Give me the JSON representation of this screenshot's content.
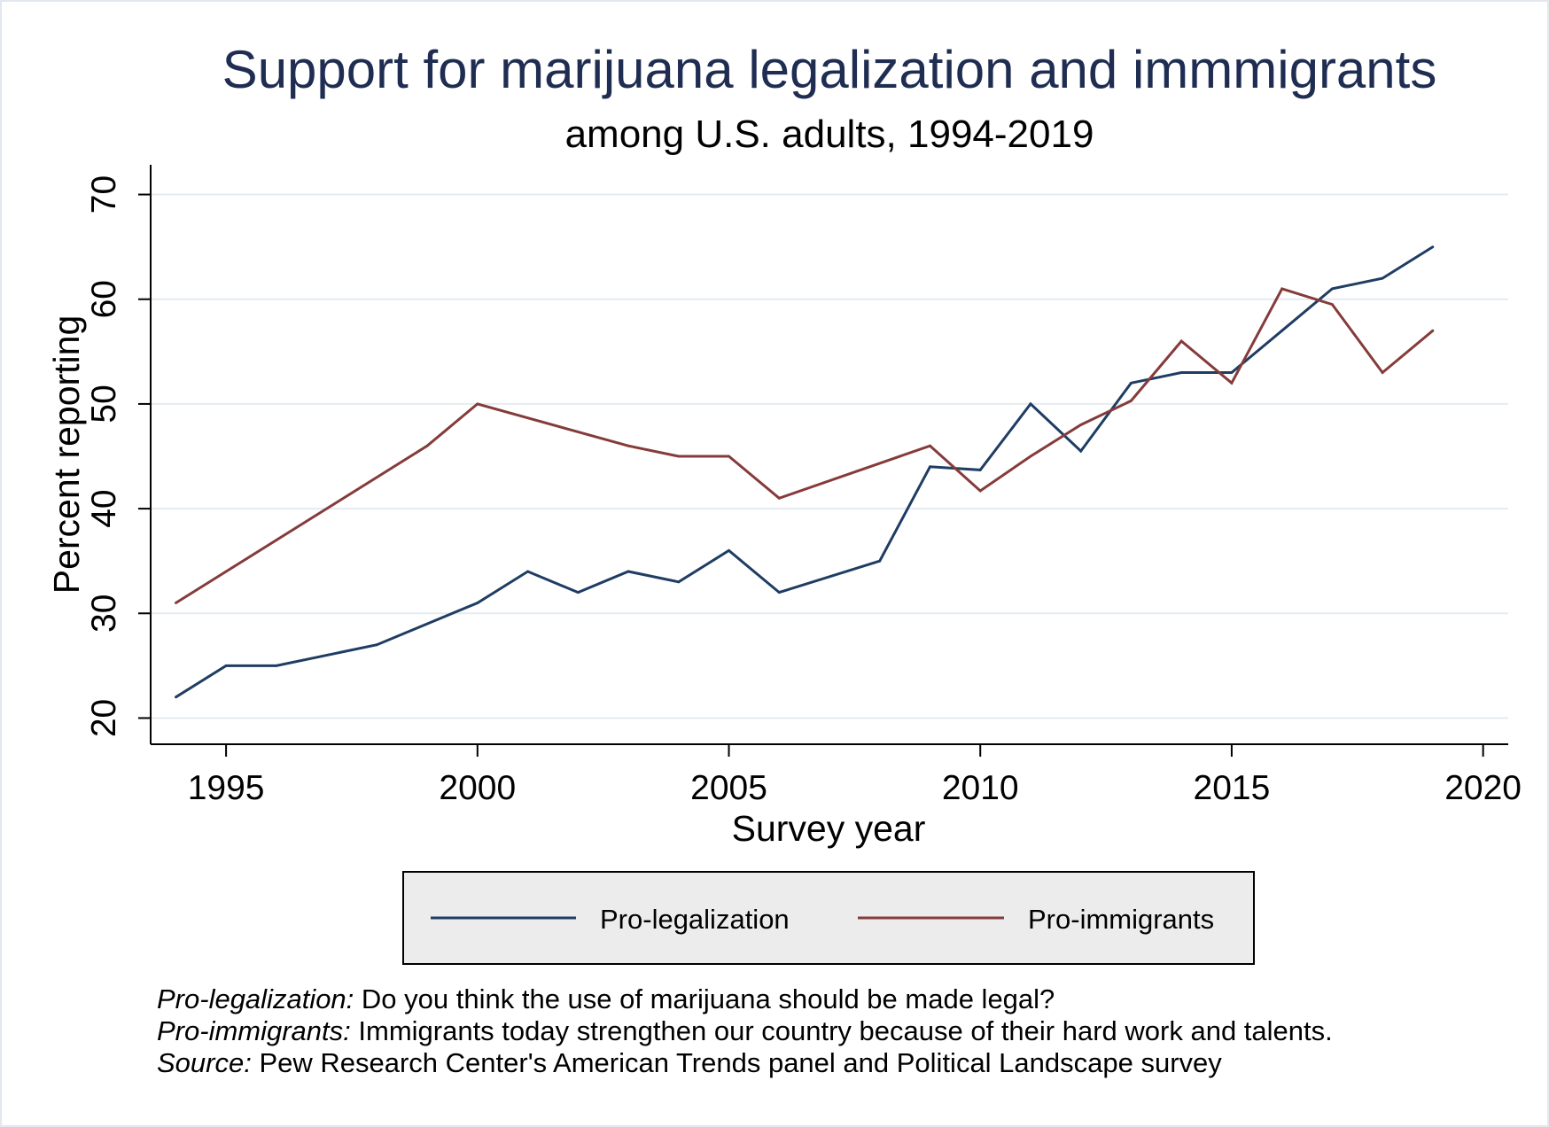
{
  "chart_data": {
    "type": "line",
    "title": "Support for marijuana legalization and immmigrants",
    "subtitle": "among U.S. adults, 1994-2019",
    "xlabel": "Survey year",
    "ylabel": "Percent reporting",
    "xlim": [
      1993.5,
      2020.5
    ],
    "ylim": [
      17.5,
      72.5
    ],
    "xticks": [
      1995,
      2000,
      2005,
      2010,
      2015,
      2020
    ],
    "yticks": [
      20,
      30,
      40,
      50,
      60,
      70
    ],
    "grid": true,
    "legend_position": "bottom",
    "series": [
      {
        "name": "Pro-legalization",
        "color": "#1f3d63",
        "points": [
          {
            "x": 1994,
            "y": 22
          },
          {
            "x": 1995,
            "y": 25
          },
          {
            "x": 1996,
            "y": 25
          },
          {
            "x": 1998,
            "y": 27
          },
          {
            "x": 2000,
            "y": 31
          },
          {
            "x": 2001,
            "y": 34
          },
          {
            "x": 2002,
            "y": 32
          },
          {
            "x": 2003,
            "y": 34
          },
          {
            "x": 2004,
            "y": 33
          },
          {
            "x": 2005,
            "y": 36
          },
          {
            "x": 2006,
            "y": 32
          },
          {
            "x": 2008,
            "y": 35
          },
          {
            "x": 2009,
            "y": 44
          },
          {
            "x": 2010,
            "y": 43.7
          },
          {
            "x": 2011,
            "y": 50
          },
          {
            "x": 2012,
            "y": 45.5
          },
          {
            "x": 2013,
            "y": 52
          },
          {
            "x": 2014,
            "y": 53
          },
          {
            "x": 2015,
            "y": 53
          },
          {
            "x": 2016,
            "y": 57
          },
          {
            "x": 2017,
            "y": 61
          },
          {
            "x": 2018,
            "y": 62
          },
          {
            "x": 2019,
            "y": 65
          }
        ]
      },
      {
        "name": "Pro-immigrants",
        "color": "#863b3b",
        "points": [
          {
            "x": 1994,
            "y": 31
          },
          {
            "x": 1999,
            "y": 46
          },
          {
            "x": 2000,
            "y": 50
          },
          {
            "x": 2003,
            "y": 46
          },
          {
            "x": 2004,
            "y": 45
          },
          {
            "x": 2005,
            "y": 45
          },
          {
            "x": 2006,
            "y": 41
          },
          {
            "x": 2009,
            "y": 46
          },
          {
            "x": 2010,
            "y": 41.7
          },
          {
            "x": 2011,
            "y": 45
          },
          {
            "x": 2012,
            "y": 48
          },
          {
            "x": 2013,
            "y": 50.3
          },
          {
            "x": 2014,
            "y": 56
          },
          {
            "x": 2015,
            "y": 52
          },
          {
            "x": 2016,
            "y": 61
          },
          {
            "x": 2017,
            "y": 59.5
          },
          {
            "x": 2018,
            "y": 53
          },
          {
            "x": 2019,
            "y": 57
          }
        ]
      }
    ]
  },
  "legend": {
    "items": [
      {
        "label": "Pro-legalization",
        "color": "#1f3d63"
      },
      {
        "label": "Pro-immigrants",
        "color": "#863b3b"
      }
    ]
  },
  "notes": [
    {
      "label": "Pro-legalization:",
      "text": " Do you think the use of marijuana should be made legal?"
    },
    {
      "label": "Pro-immigrants:",
      "text": " Immigrants today strengthen our country because of their hard work and talents."
    },
    {
      "label": "Source:",
      "text": " Pew Research Center's American Trends panel and Political Landscape survey"
    }
  ]
}
